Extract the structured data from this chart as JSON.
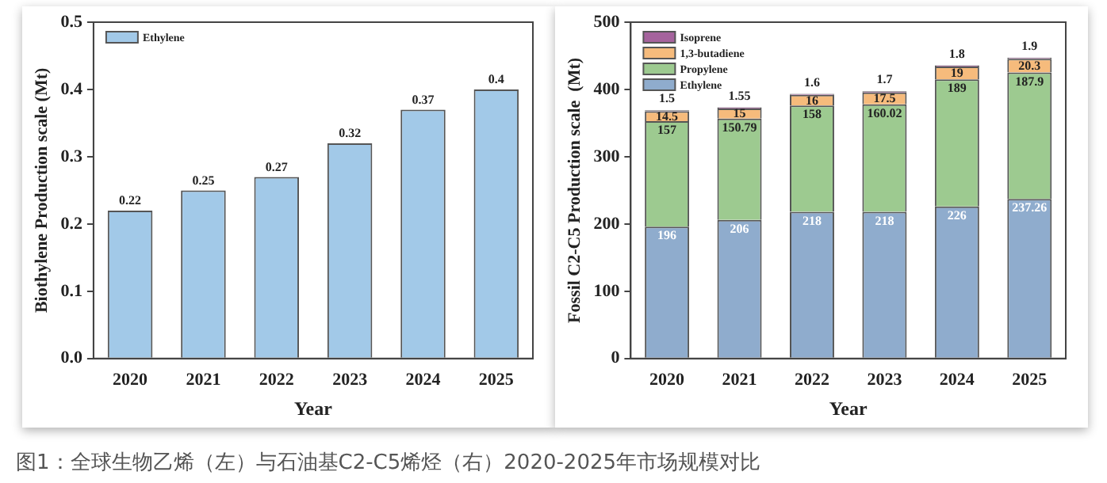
{
  "chart_data": [
    {
      "type": "bar",
      "xlabel": "Year",
      "ylabel": "Biothylene Production scale (Mt)",
      "categories": [
        "2020",
        "2021",
        "2022",
        "2023",
        "2024",
        "2025"
      ],
      "series": [
        {
          "name": "Ethylene",
          "color": "#a2c9e8",
          "values": [
            0.22,
            0.25,
            0.27,
            0.32,
            0.37,
            0.4
          ]
        }
      ],
      "ylim": [
        0,
        0.5
      ],
      "yticks": [
        {
          "value": 0,
          "label": "0.0"
        },
        0.1,
        0.2,
        0.3,
        0.4,
        0.5
      ],
      "data_labels": true,
      "legend": "top left",
      "grid": false,
      "annotations": [
        "图1：全球生物乙烯（左）与石油基C2-C5烯烃（右）2020-2025年市场规模对比"
      ]
    },
    {
      "type": "bar",
      "xlabel": "Year",
      "ylabel": "Fossil C2-C5 Production scale  (Mt)",
      "categories": [
        "2020",
        "2021",
        "2022",
        "2023",
        "2024",
        "2025"
      ],
      "stacked": true,
      "series": [
        {
          "name": "Ethylene",
          "color": "#8faccd",
          "values": [
            196,
            206,
            218,
            218,
            226,
            237.26
          ]
        },
        {
          "name": "Propylene",
          "color": "#9dca90",
          "values": [
            157,
            150.79,
            158,
            160.02,
            189,
            187.9
          ]
        },
        {
          "name": "1,3-butadiene",
          "color": "#f6bb7c",
          "values": [
            14.5,
            15,
            16,
            17.5,
            19,
            20.3
          ]
        },
        {
          "name": "Isoprene",
          "color": "#a5639d",
          "values": [
            1.5,
            1.55,
            1.6,
            1.7,
            1.8,
            1.9
          ]
        }
      ],
      "ylim": [
        0,
        500
      ],
      "yticks": [
        0,
        100,
        200,
        300,
        400,
        500
      ],
      "data_labels": true,
      "legend": "top left",
      "grid": false
    }
  ]
}
